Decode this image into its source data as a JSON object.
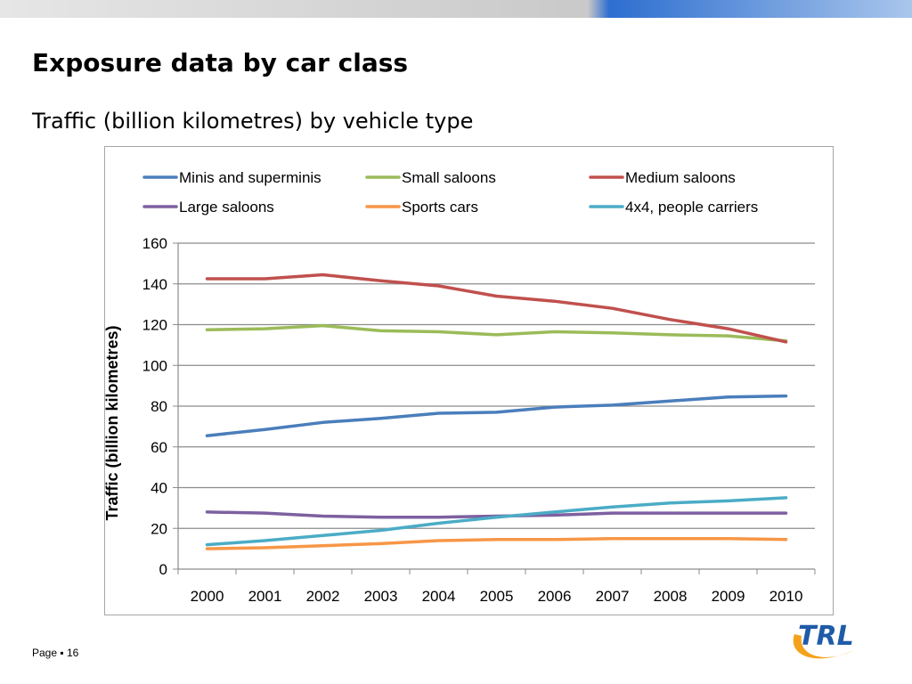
{
  "slide": {
    "title": "Exposure data by car class",
    "subtitle": "Traffic (billion kilometres) by vehicle type",
    "footer_label": "Page",
    "footer_sep": "▪",
    "page_number": "16",
    "logo_text": "TRL"
  },
  "colors": {
    "bar_gray": "#c9c9c9",
    "bar_blue": "#2d6ecf",
    "logo_blue": "#1f5ba8",
    "logo_orange": "#f5a21b"
  },
  "chart_data": {
    "type": "line",
    "x": [
      "2000",
      "2001",
      "2002",
      "2003",
      "2004",
      "2005",
      "2006",
      "2007",
      "2008",
      "2009",
      "2010"
    ],
    "ylabel": "Traffic (billion kilometres)",
    "xlabel": "",
    "ylim": [
      0,
      160
    ],
    "yticks": [
      0,
      20,
      40,
      60,
      80,
      100,
      120,
      140,
      160
    ],
    "grid": true,
    "legend": "top",
    "series": [
      {
        "name": "Minis and superminis",
        "color": "#4a7ebb",
        "values": [
          65.5,
          68.5,
          72,
          74,
          76.5,
          77,
          79.5,
          80.5,
          82.5,
          84.5,
          85
        ]
      },
      {
        "name": "Small saloons",
        "color": "#9bbb59",
        "values": [
          117.5,
          118,
          119.5,
          117,
          116.5,
          115,
          116.5,
          116,
          115,
          114.5,
          112
        ]
      },
      {
        "name": "Medium saloons",
        "color": "#c0504d",
        "values": [
          142.5,
          142.5,
          144.5,
          141.5,
          139,
          134,
          131.5,
          128,
          122.5,
          118,
          111.5
        ]
      },
      {
        "name": "Large saloons",
        "color": "#7d60a0",
        "values": [
          28,
          27.5,
          26,
          25.5,
          25.5,
          26,
          26.5,
          27.5,
          27.5,
          27.5,
          27.5
        ]
      },
      {
        "name": "Sports cars",
        "color": "#f79646",
        "values": [
          10,
          10.5,
          11.5,
          12.5,
          14,
          14.5,
          14.5,
          15,
          15,
          15,
          14.5
        ]
      },
      {
        "name": "4x4, people carriers",
        "color": "#4bacc6",
        "values": [
          12,
          14,
          16.5,
          19,
          22.5,
          25.5,
          28,
          30.5,
          32.5,
          33.5,
          35
        ]
      }
    ]
  }
}
